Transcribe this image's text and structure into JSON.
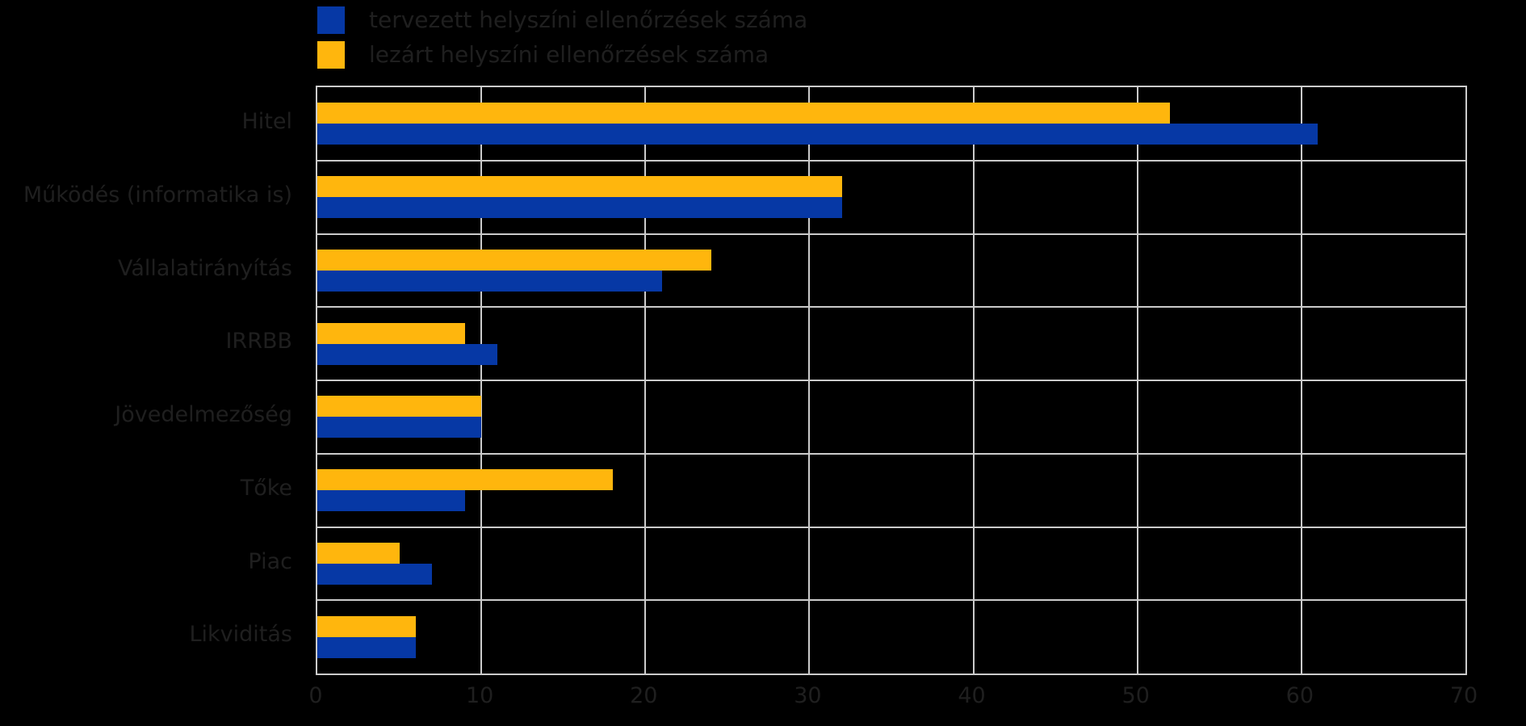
{
  "chart_data": {
    "type": "bar",
    "orientation": "horizontal",
    "categories": [
      "Hitel",
      "Működés (informatika is)",
      "Vállalatirányítás",
      "IRRBB",
      "Jövedelmezőség",
      "Tőke",
      "Piac",
      "Likviditás"
    ],
    "series": [
      {
        "name": "tervezett helyszíni ellenőrzések száma",
        "color": "#0638A5",
        "values": [
          61,
          32,
          21,
          11,
          10,
          9,
          7,
          6
        ]
      },
      {
        "name": "lezárt helyszíni ellenőrzések száma",
        "color": "#FFB60D",
        "values": [
          52,
          32,
          24,
          9,
          10,
          18,
          5,
          6
        ]
      }
    ],
    "xlim": [
      0,
      70
    ],
    "x_ticks": [
      "0",
      "10",
      "20",
      "30",
      "40",
      "50",
      "60",
      "70"
    ],
    "grid": true,
    "legend_position": "top-left",
    "title": "",
    "xlabel": "",
    "ylabel": ""
  },
  "colors": {
    "background": "#000000",
    "gridline": "#cbcbcb",
    "text": "#000000",
    "series_tervezett": "#0638A5",
    "series_lezart": "#FFB60D"
  }
}
